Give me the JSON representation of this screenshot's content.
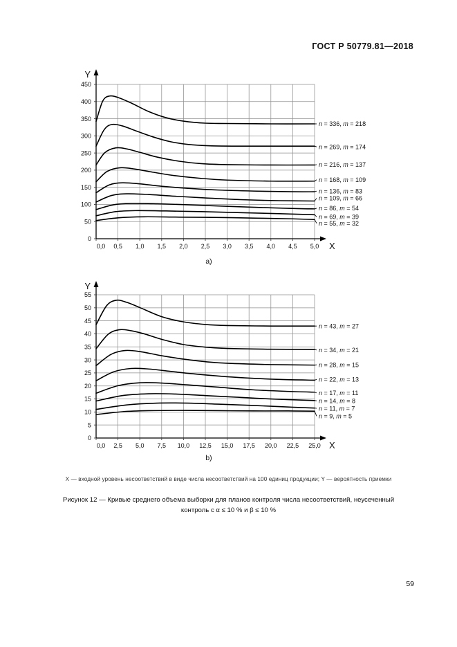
{
  "page": {
    "header": "ГОСТ Р 50779.81—2018",
    "footnote": "X — входной уровень несоответствий в виде числа несоответствий на 100 единиц продукции; Y — вероятность приемки",
    "caption_line1": "Рисунок 12 — Кривые среднего объема выборки для планов контроля числа несоответствий, неусеченный",
    "caption_line2": "контроль с α ≤ 10 % и β ≤ 10 %",
    "page_number": "59"
  },
  "chart_data": [
    {
      "id": "a",
      "type": "line",
      "sublabel": "a)",
      "xlabel": "X",
      "ylabel": "Y",
      "xlim": [
        0,
        5
      ],
      "ylim": [
        0,
        450
      ],
      "grid": true,
      "legend_position": "right-margin-labels",
      "xtick_values": [
        0,
        0.5,
        1,
        1.5,
        2,
        2.5,
        3,
        3.5,
        4,
        4.5,
        5
      ],
      "xtick_labels": [
        "0,0",
        "0,5",
        "1,0",
        "1,5",
        "2,0",
        "2,5",
        "3,0",
        "3,5",
        "4,0",
        "4,5",
        "5,0"
      ],
      "ytick_values": [
        0,
        50,
        100,
        150,
        200,
        250,
        300,
        350,
        400,
        450
      ],
      "ytick_labels": [
        "0",
        "50",
        "100",
        "150",
        "200",
        "250",
        "300",
        "350",
        "400",
        "450"
      ],
      "series": [
        {
          "name": "n = 336, m = 218",
          "n": 336,
          "m": 218,
          "label_value": 335,
          "x": [
            0,
            0.15,
            0.3,
            0.5,
            0.8,
            1.2,
            1.6,
            2.0,
            2.5,
            3.0,
            4.0,
            5.0
          ],
          "y": [
            342,
            401,
            416,
            412,
            396,
            371,
            353,
            343,
            337,
            336,
            335,
            335
          ]
        },
        {
          "name": "n = 269, m = 174",
          "n": 269,
          "m": 174,
          "label_value": 268,
          "x": [
            0,
            0.18,
            0.35,
            0.6,
            0.9,
            1.3,
            1.7,
            2.1,
            2.6,
            3.2,
            4.0,
            5.0
          ],
          "y": [
            270,
            317,
            333,
            329,
            315,
            297,
            283,
            275,
            271,
            270,
            270,
            270
          ]
        },
        {
          "name": "n = 216, m = 137",
          "n": 216,
          "m": 137,
          "label_value": 216,
          "x": [
            0,
            0.2,
            0.45,
            0.7,
            1.0,
            1.4,
            1.9,
            2.4,
            3.0,
            4.0,
            5.0
          ],
          "y": [
            215,
            251,
            265,
            262,
            252,
            238,
            226,
            219,
            216,
            215,
            215
          ]
        },
        {
          "name": "n = 168, m = 109",
          "n": 168,
          "m": 109,
          "label_value": 172,
          "x": [
            0,
            0.25,
            0.55,
            0.9,
            1.3,
            1.8,
            2.4,
            3.0,
            4.0,
            5.0
          ],
          "y": [
            166,
            196,
            207,
            203,
            194,
            184,
            176,
            171,
            168,
            168
          ]
        },
        {
          "name": "n = 136, m = 83",
          "n": 136,
          "m": 83,
          "label_value": 139,
          "x": [
            0,
            0.3,
            0.6,
            1.0,
            1.5,
            2.1,
            2.8,
            3.6,
            4.5,
            5.0
          ],
          "y": [
            134,
            157,
            163,
            160,
            153,
            147,
            142,
            139,
            137,
            137
          ]
        },
        {
          "name": "n = 109, m = 66",
          "n": 109,
          "m": 66,
          "label_value": 118,
          "x": [
            0,
            0.35,
            0.7,
            1.2,
            1.8,
            2.5,
            3.3,
            4.2,
            5.0
          ],
          "y": [
            107,
            126,
            131,
            129,
            124,
            119,
            114,
            111,
            110
          ]
        },
        {
          "name": "n = 86, m = 54",
          "n": 86,
          "m": 54,
          "label_value": 89,
          "x": [
            0,
            0.4,
            0.8,
            1.4,
            2.1,
            2.9,
            3.8,
            4.6,
            5.0
          ],
          "y": [
            85,
            99,
            103,
            102,
            99,
            95,
            91,
            88,
            87
          ]
        },
        {
          "name": "n = 69, m = 39",
          "n": 69,
          "m": 39,
          "label_value": 64,
          "x": [
            0,
            0.45,
            0.9,
            1.6,
            2.4,
            3.3,
            4.2,
            5.0
          ],
          "y": [
            67,
            79,
            82,
            81,
            79,
            76,
            73,
            70
          ]
        },
        {
          "name": "n = 55, m = 32",
          "n": 55,
          "m": 32,
          "label_value": 45,
          "x": [
            0,
            0.5,
            1.1,
            1.9,
            2.8,
            3.7,
            4.5,
            5.0
          ],
          "y": [
            53,
            61,
            64,
            63,
            62,
            60,
            58,
            56
          ]
        }
      ]
    },
    {
      "id": "b",
      "type": "line",
      "sublabel": "b)",
      "xlabel": "X",
      "ylabel": "Y",
      "xlim": [
        0,
        25
      ],
      "ylim": [
        0,
        55
      ],
      "grid": true,
      "legend_position": "right-margin-labels",
      "xtick_values": [
        0,
        2.5,
        5,
        7.5,
        10,
        12.5,
        15,
        17.5,
        20,
        22.5,
        25
      ],
      "xtick_labels": [
        "0,0",
        "2,5",
        "5,0",
        "7,5",
        "10,0",
        "12,5",
        "15,0",
        "17,5",
        "20,0",
        "22,5",
        "25,0"
      ],
      "ytick_values": [
        0,
        5,
        10,
        15,
        20,
        25,
        30,
        35,
        40,
        45,
        50,
        55
      ],
      "ytick_labels": [
        "0",
        "5",
        "10",
        "15",
        "20",
        "25",
        "30",
        "35",
        "40",
        "45",
        "50",
        "55"
      ],
      "series": [
        {
          "name": "n = 43, m = 27",
          "n": 43,
          "m": 27,
          "label_value": 43,
          "x": [
            0,
            1.2,
            2.3,
            3.5,
            5,
            7.5,
            10,
            12.5,
            15,
            20,
            25
          ],
          "y": [
            43.5,
            50.8,
            52.9,
            52.1,
            50.1,
            46.6,
            44.6,
            43.6,
            43.2,
            43,
            43
          ]
        },
        {
          "name": "n = 34, m = 21",
          "n": 34,
          "m": 21,
          "label_value": 33.8,
          "x": [
            0,
            1.4,
            2.7,
            4,
            5.5,
            7.5,
            10,
            12.5,
            15,
            20,
            25
          ],
          "y": [
            34.3,
            39.9,
            41.6,
            41.2,
            40,
            37.9,
            35.9,
            34.9,
            34.4,
            34.1,
            34
          ]
        },
        {
          "name": "n = 28, m = 15",
          "n": 28,
          "m": 15,
          "label_value": 28.1,
          "x": [
            0,
            1.7,
            3.3,
            5,
            7.5,
            10,
            12.5,
            15,
            20,
            25
          ],
          "y": [
            27.8,
            32.1,
            33.6,
            33.2,
            31.6,
            30.3,
            29.3,
            28.7,
            28.2,
            28
          ]
        },
        {
          "name": "n = 22, m = 13",
          "n": 22,
          "m": 13,
          "label_value": 22.5,
          "x": [
            0,
            2,
            4,
            6,
            8.5,
            11,
            14,
            17,
            21,
            25
          ],
          "y": [
            22,
            25.4,
            26.7,
            26.5,
            25.6,
            24.7,
            23.8,
            23.1,
            22.5,
            22.2
          ]
        },
        {
          "name": "n = 17, m = 11",
          "n": 17,
          "m": 11,
          "label_value": 17.3,
          "x": [
            0,
            2.5,
            5,
            7.5,
            10.5,
            14,
            18,
            22,
            25
          ],
          "y": [
            17.2,
            20.1,
            21.2,
            21.1,
            20.4,
            19.5,
            18.5,
            17.9,
            17.6
          ]
        },
        {
          "name": "n = 14, m = 8",
          "n": 14,
          "m": 8,
          "label_value": 14.3,
          "x": [
            0,
            3,
            6,
            9,
            12.5,
            16,
            20,
            25
          ],
          "y": [
            14.2,
            16.3,
            17,
            16.9,
            16.3,
            15.7,
            15,
            14.4
          ]
        },
        {
          "name": "n = 11, m = 7",
          "n": 11,
          "m": 7,
          "label_value": 11.4,
          "x": [
            0,
            3.5,
            7,
            10.5,
            14,
            18,
            22,
            25
          ],
          "y": [
            11,
            12.7,
            13.4,
            13.4,
            13,
            12.5,
            11.9,
            11.5
          ]
        },
        {
          "name": "n = 9, m = 5",
          "n": 9,
          "m": 5,
          "label_value": 8.4,
          "x": [
            0,
            3,
            6,
            10,
            14,
            18,
            22,
            25
          ],
          "y": [
            9,
            10.1,
            10.5,
            10.6,
            10.5,
            10.4,
            10.4,
            10.3
          ]
        }
      ]
    }
  ]
}
